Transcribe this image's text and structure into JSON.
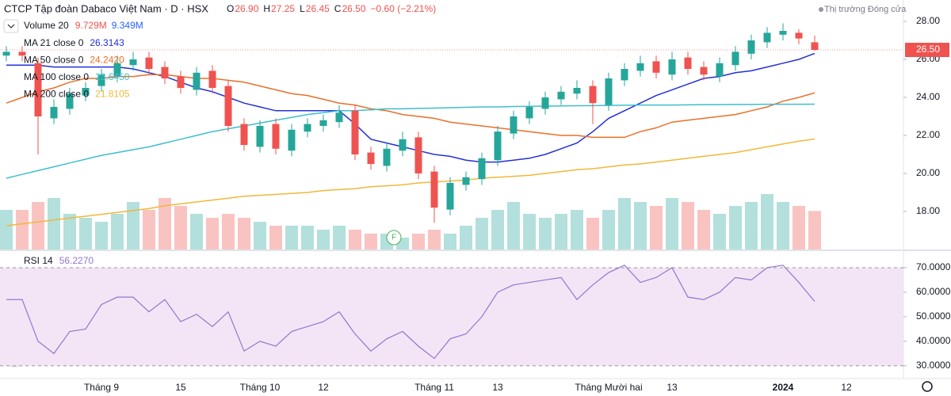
{
  "header": {
    "symbol": "CTCP Tập đoàn Dabaco Việt Nam · D · HSX",
    "ohlc": [
      {
        "label": "O",
        "value": "26.90"
      },
      {
        "label": "H",
        "value": "27.25"
      },
      {
        "label": "L",
        "value": "26.45"
      },
      {
        "label": "C",
        "value": "26.50"
      }
    ],
    "change": "−0.60 (−2.21%)",
    "status": "Thị trường Đóng cửa"
  },
  "chart_data": [
    {
      "type": "candlestick",
      "ylim": [
        16.0,
        29.125
      ],
      "yticks": [
        {
          "value": 28,
          "label": "28.00"
        },
        {
          "value": 26,
          "label": "26.00"
        },
        {
          "value": 24,
          "label": "24.00"
        },
        {
          "value": 22,
          "label": "22.00"
        },
        {
          "value": 20,
          "label": "20.00"
        },
        {
          "value": 18,
          "label": "18.00"
        }
      ],
      "last_price": {
        "value": 26.5,
        "label": "26.50"
      },
      "grid": false,
      "up_color": "#26a69a",
      "down_color": "#ef5350",
      "categories": [
        null,
        null,
        null,
        null,
        null,
        null,
        "Tháng 9",
        null,
        null,
        null,
        null,
        "15",
        null,
        null,
        null,
        null,
        "Tháng 10",
        null,
        null,
        null,
        "12",
        null,
        null,
        null,
        null,
        null,
        null,
        "Tháng 11",
        null,
        null,
        null,
        "13",
        null,
        null,
        null,
        null,
        null,
        null,
        "Tháng Mười hai",
        null,
        null,
        null,
        "13",
        null,
        null,
        null,
        null,
        null,
        null,
        "2024",
        null,
        null
      ],
      "extra_categories": [
        "12"
      ],
      "open": [
        26.2,
        26.4,
        25.8,
        22.9,
        23.4,
        24.1,
        24.6,
        25.1,
        25.7,
        26.1,
        25.6,
        25.1,
        24.4,
        25.4,
        24.6,
        22.6,
        21.4,
        22.6,
        21.2,
        22.2,
        22.5,
        22.7,
        23.3,
        21.1,
        20.4,
        21.2,
        21.9,
        20.1,
        18.1,
        19.4,
        19.7,
        20.7,
        22.1,
        22.9,
        23.4,
        23.9,
        24.2,
        24.6,
        23.6,
        24.9,
        25.4,
        25.9,
        25.2,
        26.1,
        25.6,
        25.1,
        25.7,
        26.3,
        26.9,
        27.3,
        27.4,
        26.9
      ],
      "high": [
        26.7,
        26.7,
        26.1,
        23.9,
        24.5,
        24.8,
        25.5,
        26.2,
        26.4,
        26.4,
        25.9,
        25.4,
        25.6,
        25.7,
        24.9,
        22.9,
        22.8,
        22.9,
        22.6,
        22.9,
        23.1,
        23.6,
        23.6,
        21.4,
        21.6,
        22.2,
        22.2,
        20.4,
        19.8,
        20.1,
        21.1,
        22.5,
        23.3,
        23.8,
        24.3,
        24.6,
        24.9,
        24.9,
        25.3,
        25.8,
        26.2,
        26.2,
        26.4,
        26.4,
        25.9,
        26.1,
        26.7,
        27.3,
        27.7,
        27.9,
        27.6,
        27.25
      ],
      "low": [
        25.9,
        25.9,
        21.0,
        22.6,
        23.1,
        23.8,
        24.3,
        24.8,
        25.4,
        25.2,
        24.7,
        24.2,
        24.1,
        24.2,
        22.2,
        21.2,
        21.1,
        21.0,
        20.9,
        21.9,
        22.2,
        22.4,
        20.7,
        20.2,
        20.1,
        20.9,
        19.7,
        17.4,
        17.8,
        19.1,
        19.4,
        20.4,
        21.8,
        22.6,
        23.1,
        23.6,
        23.9,
        22.6,
        23.3,
        24.6,
        25.1,
        25.0,
        24.9,
        25.2,
        24.9,
        24.8,
        25.4,
        26.0,
        26.6,
        27.0,
        26.8,
        26.45
      ],
      "close": [
        26.4,
        26.2,
        23.0,
        23.5,
        24.2,
        24.5,
        25.2,
        25.8,
        26.0,
        25.5,
        25.0,
        24.5,
        25.3,
        24.5,
        22.5,
        21.5,
        22.5,
        21.3,
        22.3,
        22.6,
        22.8,
        23.2,
        21.0,
        20.5,
        21.3,
        21.8,
        20.0,
        18.2,
        19.5,
        19.8,
        20.8,
        22.2,
        23.0,
        23.5,
        24.0,
        24.3,
        24.5,
        23.7,
        25.0,
        25.5,
        25.8,
        25.3,
        26.0,
        25.5,
        25.2,
        25.8,
        26.4,
        27.0,
        27.4,
        27.5,
        27.1,
        26.5
      ],
      "volume": {
        "name": "Volume 20",
        "value_label": "9.729M",
        "ma_label": "9.349M",
        "color": "#90caf9",
        "values": [
          10,
          10,
          12,
          13,
          9,
          8,
          7,
          9,
          12,
          10,
          13,
          11,
          9,
          8,
          9,
          8,
          7,
          6,
          6,
          6,
          5,
          6,
          5,
          4,
          4,
          3,
          4,
          5,
          4,
          6,
          8,
          10,
          12,
          9,
          8,
          9,
          10,
          8,
          10,
          13,
          12,
          11,
          13,
          12,
          10,
          9,
          11,
          12,
          14,
          12,
          11,
          9.729
        ]
      },
      "series": [
        {
          "name": "MA 21 close 0",
          "value_label": "26.3143",
          "color": "#2330d8",
          "values": [
            25.7,
            25.7,
            25.7,
            25.6,
            25.6,
            25.6,
            25.6,
            25.6,
            25.5,
            25.3,
            25.1,
            24.8,
            24.5,
            24.3,
            24.0,
            23.7,
            23.5,
            23.3,
            23.3,
            23.3,
            23.3,
            23.3,
            22.6,
            21.8,
            21.6,
            21.4,
            21.2,
            21.0,
            20.9,
            20.7,
            20.6,
            20.6,
            20.7,
            20.8,
            21.0,
            21.3,
            21.6,
            22.2,
            22.9,
            23.3,
            23.7,
            24.1,
            24.4,
            24.7,
            25.0,
            25.1,
            25.3,
            25.4,
            25.6,
            25.8,
            26.0,
            26.3143
          ]
        },
        {
          "name": "MA 50 close 0",
          "value_label": "24.2420",
          "color": "#e8702a",
          "values": [
            23.7,
            24.0,
            24.3,
            24.5,
            24.8,
            25.0,
            25.0,
            25.1,
            25.1,
            25.2,
            25.2,
            25.1,
            25.0,
            25.0,
            24.9,
            24.8,
            24.6,
            24.4,
            24.2,
            24.1,
            23.9,
            23.7,
            23.6,
            23.4,
            23.3,
            23.1,
            23.0,
            22.9,
            22.7,
            22.6,
            22.5,
            22.4,
            22.3,
            22.2,
            22.1,
            22.0,
            22.0,
            21.9,
            21.9,
            21.9,
            22.2,
            22.4,
            22.7,
            22.8,
            22.9,
            23.0,
            23.1,
            23.3,
            23.5,
            23.8,
            24.0,
            24.242
          ]
        },
        {
          "name": "MA 100 close 0",
          "value_label": "23.6450",
          "color": "#3fbfcc",
          "values": [
            19.75,
            19.95,
            20.15,
            20.35,
            20.55,
            20.75,
            20.95,
            21.1,
            21.25,
            21.4,
            21.6,
            21.8,
            22.0,
            22.2,
            22.35,
            22.5,
            22.65,
            22.8,
            22.95,
            23.1,
            23.2,
            23.3,
            23.3,
            23.35,
            23.4,
            23.4,
            23.42,
            23.44,
            23.46,
            23.48,
            23.5,
            23.5,
            23.52,
            23.53,
            23.54,
            23.55,
            23.56,
            23.57,
            23.58,
            23.59,
            23.6,
            23.6,
            23.6,
            23.61,
            23.62,
            23.62,
            23.63,
            23.63,
            23.64,
            23.64,
            23.64,
            23.645
          ]
        },
        {
          "name": "MA 200 close 0",
          "value_label": "21.8105",
          "color": "#f0b83a",
          "values": [
            17.25,
            17.35,
            17.45,
            17.55,
            17.65,
            17.75,
            17.85,
            17.95,
            18.05,
            18.15,
            18.3,
            18.4,
            18.5,
            18.6,
            18.7,
            18.8,
            18.85,
            18.9,
            18.95,
            19.0,
            19.1,
            19.15,
            19.2,
            19.3,
            19.35,
            19.4,
            19.5,
            19.55,
            19.6,
            19.65,
            19.75,
            19.8,
            19.85,
            19.9,
            20.0,
            20.1,
            20.2,
            20.25,
            20.35,
            20.45,
            20.5,
            20.6,
            20.7,
            20.8,
            20.9,
            21.0,
            21.1,
            21.25,
            21.4,
            21.55,
            21.7,
            21.8105
          ]
        }
      ],
      "annotation": "F"
    },
    {
      "type": "line",
      "title": "RSI 14",
      "value_label": "56.2270",
      "color": "#9575cd",
      "band_color": "#f3e5f5",
      "ylim": [
        24.8,
        75.8
      ],
      "yticks": [
        {
          "value": 70,
          "label": "70.0000"
        },
        {
          "value": 60,
          "label": "60.0000"
        },
        {
          "value": 50,
          "label": "50.0000"
        },
        {
          "value": 40,
          "label": "40.0000"
        },
        {
          "value": 30,
          "label": "30.0000"
        }
      ],
      "band": [
        30,
        70
      ],
      "values": [
        57,
        57,
        40,
        35,
        44,
        45,
        55,
        58,
        58,
        52,
        57,
        48,
        51,
        46,
        52,
        36,
        40,
        38,
        44,
        46,
        48,
        52,
        43,
        36,
        41,
        44,
        38,
        33,
        41,
        43,
        50,
        60,
        63,
        64,
        65,
        66,
        57,
        63,
        68,
        71,
        64,
        66,
        70,
        58,
        57,
        60,
        66,
        65,
        70,
        71,
        64,
        56.227
      ]
    }
  ]
}
